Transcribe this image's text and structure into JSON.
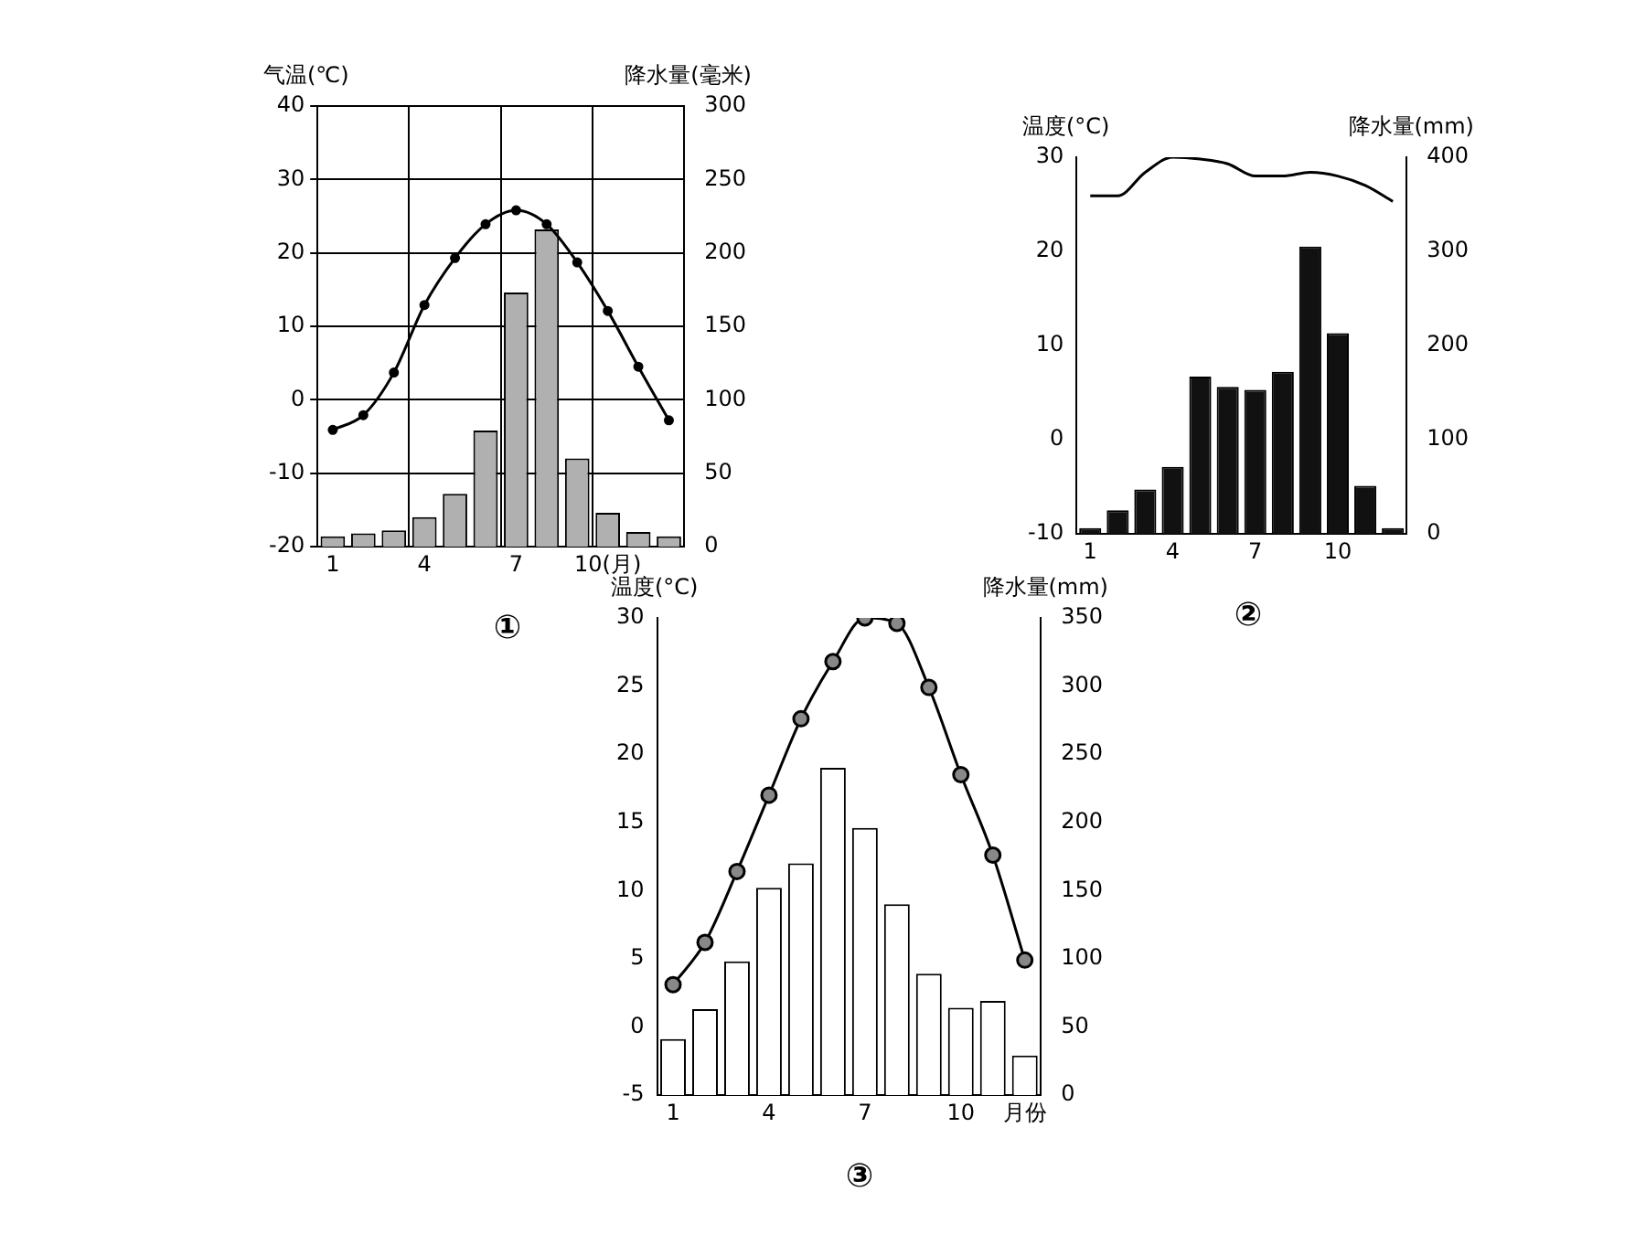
{
  "chart_data": [
    {
      "type": "bar",
      "title": "①",
      "ylabel": "气温(℃)",
      "y2label": "降水量(毫米)",
      "categories": [
        "1",
        null,
        null,
        "4",
        null,
        null,
        "7",
        null,
        null,
        "10(月)",
        null,
        null
      ],
      "ylim": [
        -20,
        40
      ],
      "yticks": [
        -20,
        -10,
        0,
        10,
        20,
        30,
        40
      ],
      "y2lim": [
        0,
        300
      ],
      "y2ticks": [
        0,
        50,
        100,
        150,
        200,
        250,
        300
      ],
      "grid": true,
      "legend": false,
      "marker": "circle",
      "series": [
        {
          "type": "line",
          "color": "#000000",
          "values": [
            -4.1,
            -2.1,
            3.7,
            12.9,
            19.3,
            23.9,
            25.8,
            23.9,
            18.7,
            12.1,
            4.5,
            -2.8
          ]
        },
        {
          "axis": "y2",
          "color": "#b0b0b0",
          "values": [
            7,
            9,
            11,
            20,
            36,
            79,
            173,
            216,
            60,
            23,
            10,
            7
          ]
        }
      ]
    },
    {
      "type": "bar",
      "title": "②",
      "ylabel": "温度(°C)",
      "y2label": "降水量(mm)",
      "categories": [
        "1",
        null,
        null,
        "4",
        null,
        null,
        "7",
        null,
        null,
        "10",
        null,
        null
      ],
      "ylim": [
        -10,
        30
      ],
      "yticks": [
        -10,
        0,
        10,
        20,
        30
      ],
      "y2lim": [
        0,
        400
      ],
      "y2ticks": [
        0,
        100,
        200,
        300,
        400
      ],
      "grid": false,
      "legend": false,
      "marker": "none",
      "series": [
        {
          "type": "line",
          "color": "#000000",
          "values": [
            25.9,
            25.9,
            28.4,
            30,
            29.8,
            29.3,
            28,
            28,
            28.4,
            28,
            27,
            25.3
          ]
        },
        {
          "axis": "y2",
          "color": "#111111",
          "values": [
            6,
            25,
            47,
            71,
            167,
            156,
            153,
            172,
            305,
            213,
            51,
            6
          ]
        }
      ]
    },
    {
      "type": "bar",
      "title": "③",
      "ylabel": "温度(°C)",
      "y2label": "降水量(mm)",
      "categories": [
        "1",
        null,
        null,
        "4",
        null,
        null,
        "7",
        null,
        null,
        "10",
        null,
        "月份"
      ],
      "ylim": [
        -5,
        30
      ],
      "yticks": [
        -5,
        0,
        5,
        10,
        15,
        20,
        25,
        30
      ],
      "y2lim": [
        0,
        350
      ],
      "y2ticks": [
        0,
        50,
        100,
        150,
        200,
        250,
        300,
        350
      ],
      "grid": false,
      "legend": false,
      "marker": "circle",
      "series": [
        {
          "type": "line",
          "color": "#000000",
          "values": [
            3.1,
            6.2,
            11.4,
            17,
            22.6,
            26.8,
            30,
            29.6,
            24.9,
            18.5,
            12.6,
            4.9
          ]
        },
        {
          "axis": "y2",
          "color": "#ffffff",
          "values": [
            41,
            63,
            98,
            152,
            170,
            240,
            196,
            140,
            89,
            64,
            69,
            29
          ]
        }
      ]
    }
  ]
}
